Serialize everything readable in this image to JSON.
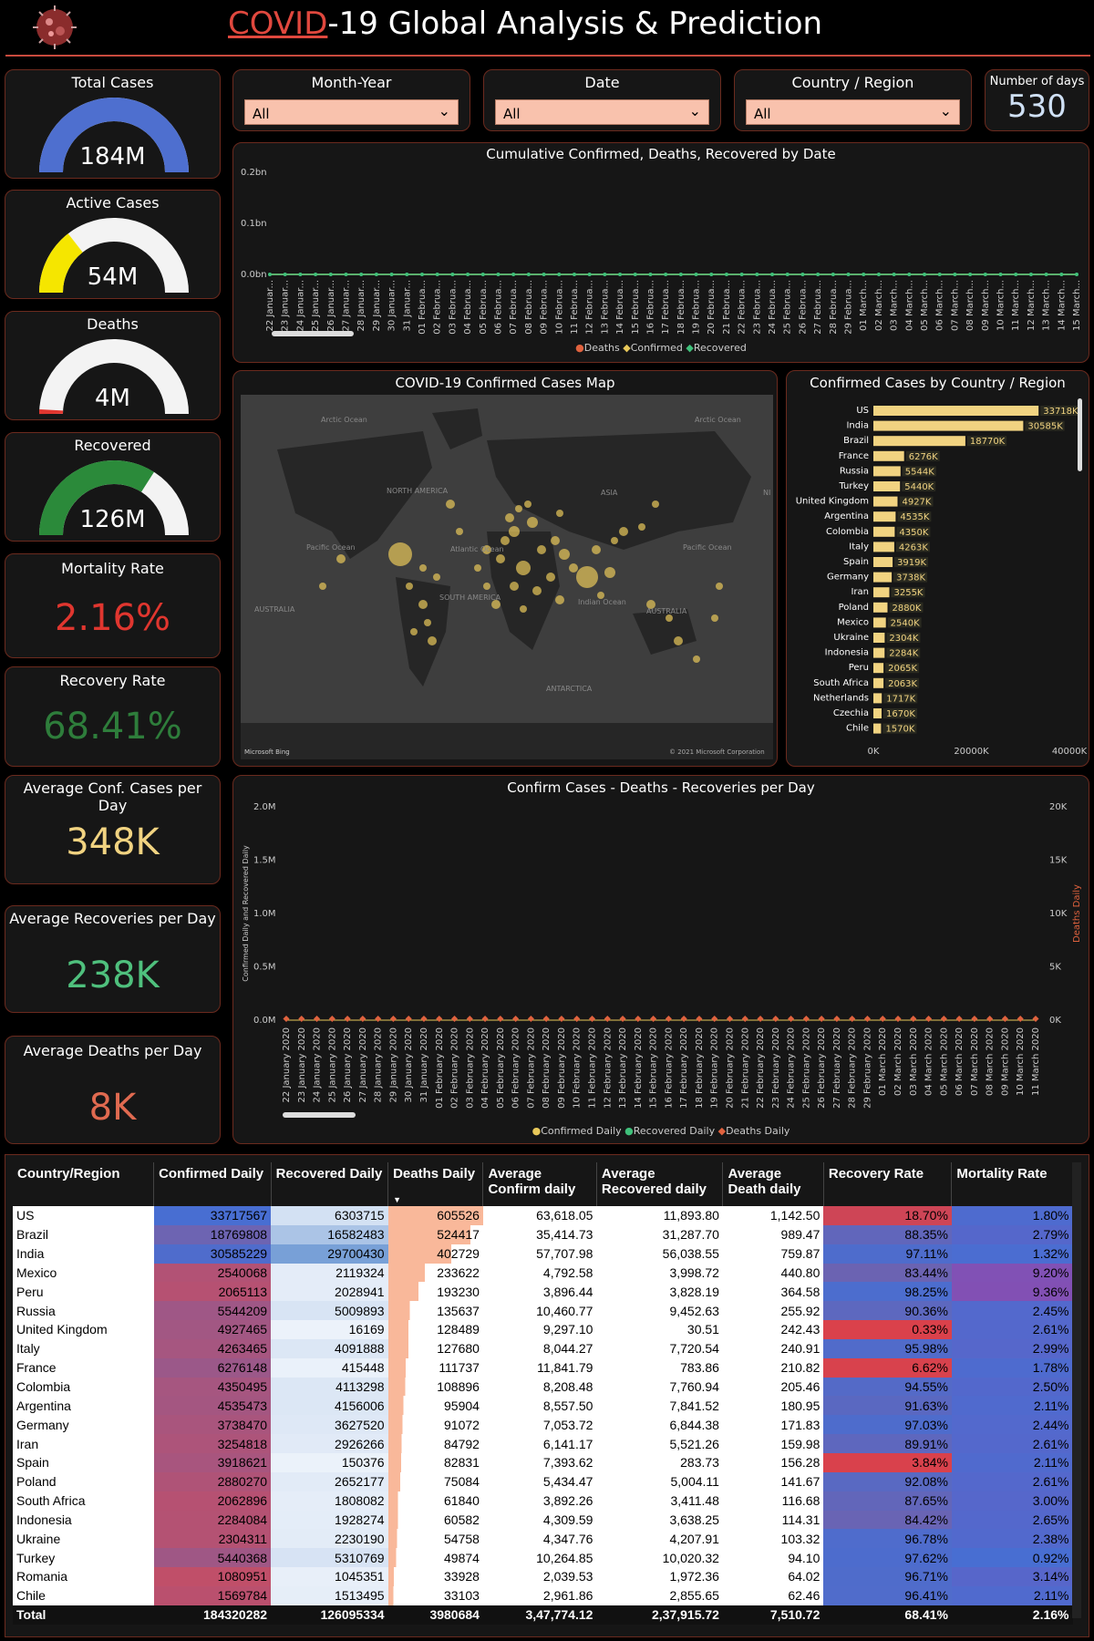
{
  "header": {
    "title_word": "COVID",
    "title_rest": "-19 Global Analysis & Prediction",
    "accent": "#e0483e"
  },
  "kpis": {
    "total_cases": {
      "title": "Total Cases",
      "value": "184M",
      "fraction": 1.0,
      "color": "#4e6fcf"
    },
    "active_cases": {
      "title": "Active Cases",
      "value": "54M",
      "fraction": 0.29,
      "color": "#f5e600"
    },
    "deaths": {
      "title": "Deaths",
      "value": "4M",
      "fraction": 0.02,
      "color": "#e0362f"
    },
    "recovered": {
      "title": "Recovered",
      "value": "126M",
      "fraction": 0.68,
      "color": "#2b8a3a"
    },
    "mortality": {
      "title": "Mortality Rate",
      "value": "2.16%",
      "color": "#e0362f"
    },
    "recovery": {
      "title": "Recovery Rate",
      "value": "68.41%",
      "color": "#2e7d3b"
    },
    "avg_conf": {
      "title": "Average Conf. Cases per Day",
      "value": "348K",
      "color": "#f1d381"
    },
    "avg_rec": {
      "title": "Average Recoveries per Day",
      "value": "238K",
      "color": "#4fc07d"
    },
    "avg_deaths": {
      "title": "Average Deaths per Day",
      "value": "8K",
      "color": "#e06a50"
    }
  },
  "filters": {
    "month_year": {
      "label": "Month-Year",
      "value": "All"
    },
    "date": {
      "label": "Date",
      "value": "All"
    },
    "country": {
      "label": "Country / Region",
      "value": "All"
    },
    "days": {
      "label": "Number of days",
      "value": "530"
    }
  },
  "cumulative_chart": {
    "title": "Cumulative Confirmed, Deaths, Recovered by Date",
    "y_ticks": [
      "0.2bn",
      "0.1bn",
      "0.0bn"
    ],
    "dates": [
      "22 Januar...",
      "23 Januar...",
      "24 Januar...",
      "25 Januar...",
      "26 Januar...",
      "27 Januar...",
      "28 Januar...",
      "29 Januar...",
      "30 Januar...",
      "31 Januar...",
      "01 Februa...",
      "02 Februa...",
      "03 Februa...",
      "04 Februa...",
      "05 Februa...",
      "06 Februa...",
      "07 Februa...",
      "08 Februa...",
      "09 Februa...",
      "10 Februa...",
      "11 Februa...",
      "12 Februa...",
      "13 Februa...",
      "14 Februa...",
      "15 Februa...",
      "16 Februa...",
      "17 Februa...",
      "18 Februa...",
      "19 Februa...",
      "20 Februa...",
      "21 Februa...",
      "22 Februa...",
      "23 Februa...",
      "24 Februa...",
      "25 Februa...",
      "26 Februa...",
      "27 Februa...",
      "28 Februa...",
      "29 Februa...",
      "01 March...",
      "02 March...",
      "03 March...",
      "04 March...",
      "05 March...",
      "06 March...",
      "07 March...",
      "08 March...",
      "09 March...",
      "10 March...",
      "11 March...",
      "12 March...",
      "13 March...",
      "14 March...",
      "15 March..."
    ],
    "legend": [
      "Deaths",
      "Confirmed",
      "Recovered"
    ],
    "colors": [
      "#e0623e",
      "#e8c85a",
      "#3fc07a"
    ]
  },
  "map": {
    "title": "COVID-19 Confirmed Cases Map",
    "labels": [
      "Arctic Ocean",
      "Arctic Ocean",
      "NORTH AMERICA",
      "ASIA",
      "Pacific Ocean",
      "Atlantic Ocean",
      "Pacific Ocean",
      "AUSTRALIA",
      "SOUTH AMERICA",
      "Indian Ocean",
      "AUSTRALIA",
      "ANTARCTICA",
      "NI AM"
    ],
    "brand": "Microsoft Bing",
    "copyright": "© 2021 Microsoft Corporation"
  },
  "chart_data": [
    {
      "type": "bar",
      "title": "Confirmed Cases by Country / Region",
      "orientation": "horizontal",
      "categories": [
        "US",
        "India",
        "Brazil",
        "France",
        "Russia",
        "Turkey",
        "United Kingdom",
        "Argentina",
        "Colombia",
        "Italy",
        "Spain",
        "Germany",
        "Iran",
        "Poland",
        "Mexico",
        "Ukraine",
        "Indonesia",
        "Peru",
        "South Africa",
        "Netherlands",
        "Czechia",
        "Chile"
      ],
      "values": [
        33718,
        30585,
        18770,
        6276,
        5544,
        5440,
        4927,
        4535,
        4350,
        4263,
        3919,
        3738,
        3255,
        2880,
        2540,
        2304,
        2284,
        2065,
        2063,
        1717,
        1670,
        1570
      ],
      "value_labels": [
        "33718K",
        "30585K",
        "18770K",
        "6276K",
        "5544K",
        "5440K",
        "4927K",
        "4535K",
        "4350K",
        "4263K",
        "3919K",
        "3738K",
        "3255K",
        "2880K",
        "2540K",
        "2304K",
        "2284K",
        "2065K",
        "2063K",
        "1717K",
        "1670K",
        "1570K"
      ],
      "x_ticks": [
        "0K",
        "20000K",
        "40000K"
      ],
      "xlim": [
        0,
        40000
      ],
      "color": "#f1d381"
    },
    {
      "type": "line",
      "title": "Confirm Cases - Deaths - Recoveries per Day",
      "ylabel": "Confirmed Daily and Recovered Daily",
      "y2label": "Deaths Daily",
      "y_ticks": [
        "2.0M",
        "1.5M",
        "1.0M",
        "0.5M",
        "0.0M"
      ],
      "y2_ticks": [
        "20K",
        "15K",
        "10K",
        "5K",
        "0K"
      ],
      "x": [
        "22 January 2020",
        "23 January 2020",
        "24 January 2020",
        "25 January 2020",
        "26 January 2020",
        "27 January 2020",
        "28 January 2020",
        "29 January 2020",
        "30 January 2020",
        "31 January 2020",
        "01 February 2020",
        "02 February 2020",
        "03 February 2020",
        "04 February 2020",
        "05 February 2020",
        "06 February 2020",
        "07 February 2020",
        "08 February 2020",
        "09 February 2020",
        "10 February 2020",
        "11 February 2020",
        "12 February 2020",
        "13 February 2020",
        "14 February 2020",
        "15 February 2020",
        "16 February 2020",
        "17 February 2020",
        "18 February 2020",
        "19 February 2020",
        "20 February 2020",
        "21 February 2020",
        "22 February 2020",
        "23 February 2020",
        "24 February 2020",
        "25 February 2020",
        "26 February 2020",
        "27 February 2020",
        "28 February 2020",
        "29 February 2020",
        "01 March 2020",
        "02 March 2020",
        "03 March 2020",
        "04 March 2020",
        "05 March 2020",
        "06 March 2020",
        "07 March 2020",
        "08 March 2020",
        "09 March 2020",
        "10 March 2020",
        "11 March 2020"
      ],
      "legend": [
        "Confirmed Daily",
        "Recovered Daily",
        "Deaths Daily"
      ],
      "colors": [
        "#e8c85a",
        "#3fc07a",
        "#e0623e"
      ]
    },
    {
      "type": "table",
      "columns": [
        "Country/Region",
        "Confirmed Daily",
        "Recovered Daily",
        "Deaths Daily",
        "Average Confirm daily",
        "Average Recovered daily",
        "Average Death daily",
        "Recovery Rate",
        "Mortality Rate"
      ],
      "rows": [
        [
          "US",
          "33717567",
          "6303715",
          "605526",
          "63,618.05",
          "11,893.80",
          "1,142.50",
          "18.70%",
          "1.80%"
        ],
        [
          "Brazil",
          "18769808",
          "16582483",
          "524417",
          "35,414.73",
          "31,287.70",
          "989.47",
          "88.35%",
          "2.79%"
        ],
        [
          "India",
          "30585229",
          "29700430",
          "402729",
          "57,707.98",
          "56,038.55",
          "759.87",
          "97.11%",
          "1.32%"
        ],
        [
          "Mexico",
          "2540068",
          "2119324",
          "233622",
          "4,792.58",
          "3,998.72",
          "440.80",
          "83.44%",
          "9.20%"
        ],
        [
          "Peru",
          "2065113",
          "2028941",
          "193230",
          "3,896.44",
          "3,828.19",
          "364.58",
          "98.25%",
          "9.36%"
        ],
        [
          "Russia",
          "5544209",
          "5009893",
          "135637",
          "10,460.77",
          "9,452.63",
          "255.92",
          "90.36%",
          "2.45%"
        ],
        [
          "United Kingdom",
          "4927465",
          "16169",
          "128489",
          "9,297.10",
          "30.51",
          "242.43",
          "0.33%",
          "2.61%"
        ],
        [
          "Italy",
          "4263465",
          "4091888",
          "127680",
          "8,044.27",
          "7,720.54",
          "240.91",
          "95.98%",
          "2.99%"
        ],
        [
          "France",
          "6276148",
          "415448",
          "111737",
          "11,841.79",
          "783.86",
          "210.82",
          "6.62%",
          "1.78%"
        ],
        [
          "Colombia",
          "4350495",
          "4113298",
          "108896",
          "8,208.48",
          "7,760.94",
          "205.46",
          "94.55%",
          "2.50%"
        ],
        [
          "Argentina",
          "4535473",
          "4156006",
          "95904",
          "8,557.50",
          "7,841.52",
          "180.95",
          "91.63%",
          "2.11%"
        ],
        [
          "Germany",
          "3738470",
          "3627520",
          "91072",
          "7,053.72",
          "6,844.38",
          "171.83",
          "97.03%",
          "2.44%"
        ],
        [
          "Iran",
          "3254818",
          "2926266",
          "84792",
          "6,141.17",
          "5,521.26",
          "159.98",
          "89.91%",
          "2.61%"
        ],
        [
          "Spain",
          "3918621",
          "150376",
          "82831",
          "7,393.62",
          "283.73",
          "156.28",
          "3.84%",
          "2.11%"
        ],
        [
          "Poland",
          "2880270",
          "2652177",
          "75084",
          "5,434.47",
          "5,004.11",
          "141.67",
          "92.08%",
          "2.61%"
        ],
        [
          "South Africa",
          "2062896",
          "1808082",
          "61840",
          "3,892.26",
          "3,411.48",
          "116.68",
          "87.65%",
          "3.00%"
        ],
        [
          "Indonesia",
          "2284084",
          "1928274",
          "60582",
          "4,309.59",
          "3,638.25",
          "114.31",
          "84.42%",
          "2.65%"
        ],
        [
          "Ukraine",
          "2304311",
          "2230190",
          "54758",
          "4,347.76",
          "4,207.91",
          "103.32",
          "96.78%",
          "2.38%"
        ],
        [
          "Turkey",
          "5440368",
          "5310769",
          "49874",
          "10,264.85",
          "10,020.32",
          "94.10",
          "97.62%",
          "0.92%"
        ],
        [
          "Romania",
          "1080951",
          "1045351",
          "33928",
          "2,039.53",
          "1,972.36",
          "64.02",
          "96.71%",
          "3.14%"
        ],
        [
          "Chile",
          "1569784",
          "1513495",
          "33103",
          "2,961.86",
          "2,855.65",
          "62.46",
          "96.41%",
          "2.11%"
        ]
      ],
      "total": [
        "Total",
        "184320282",
        "126095334",
        "3980684",
        "3,47,774.12",
        "2,37,915.72",
        "7,510.72",
        "68.41%",
        "2.16%"
      ]
    }
  ]
}
